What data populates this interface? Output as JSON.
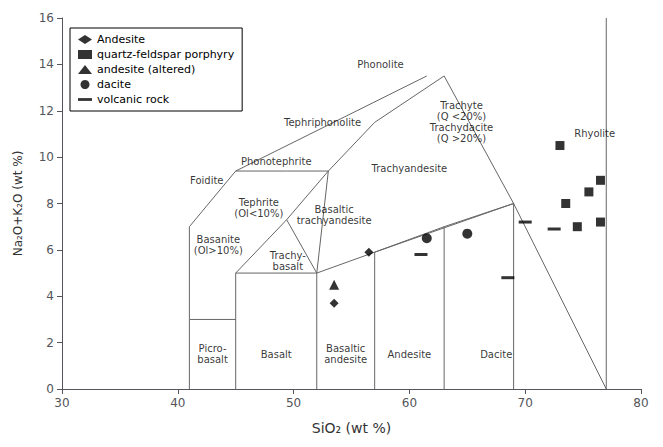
{
  "chart_data": {
    "type": "scatter",
    "xlabel": "SiO₂ (wt %)",
    "ylabel": "Na₂O+K₂O (wt %)",
    "xlim": [
      30,
      80
    ],
    "ylim": [
      0,
      16
    ],
    "xticks": [
      30,
      40,
      50,
      60,
      70,
      80
    ],
    "yticks": [
      0,
      2,
      4,
      6,
      8,
      10,
      12,
      14,
      16
    ],
    "grid": false,
    "legend": "upper left",
    "boundary_lines": {
      "color": "#666666",
      "segments": [
        {
          "x": [
            41,
            41
          ],
          "y": [
            0,
            3
          ]
        },
        {
          "x": [
            41,
            45
          ],
          "y": [
            3,
            3
          ]
        },
        {
          "x": [
            41,
            41
          ],
          "y": [
            3,
            7
          ]
        },
        {
          "x": [
            45,
            45
          ],
          "y": [
            0,
            5
          ]
        },
        {
          "x": [
            45,
            52
          ],
          "y": [
            5,
            5
          ]
        },
        {
          "x": [
            52,
            52
          ],
          "y": [
            0,
            5
          ]
        },
        {
          "x": [
            52,
            57
          ],
          "y": [
            5,
            5.9
          ]
        },
        {
          "x": [
            57,
            57
          ],
          "y": [
            0,
            5.9
          ]
        },
        {
          "x": [
            57,
            63
          ],
          "y": [
            5.9,
            7
          ]
        },
        {
          "x": [
            63,
            63
          ],
          "y": [
            0,
            7
          ]
        },
        {
          "x": [
            63,
            69
          ],
          "y": [
            7,
            8
          ]
        },
        {
          "x": [
            69,
            69
          ],
          "y": [
            0,
            8
          ]
        },
        {
          "x": [
            69,
            77
          ],
          "y": [
            8,
            0
          ]
        },
        {
          "x": [
            77,
            77
          ],
          "y": [
            0,
            16
          ]
        },
        {
          "x": [
            41,
            45
          ],
          "y": [
            7,
            9.4
          ]
        },
        {
          "x": [
            45,
            49.4
          ],
          "y": [
            9.4,
            9.4
          ]
        },
        {
          "x": [
            45,
            49.4
          ],
          "y": [
            5,
            7.3
          ]
        },
        {
          "x": [
            49.4,
            52
          ],
          "y": [
            7.3,
            5
          ]
        },
        {
          "x": [
            49.4,
            53
          ],
          "y": [
            7.3,
            9.4
          ]
        },
        {
          "x": [
            49.4,
            53
          ],
          "y": [
            9.4,
            9.4
          ]
        },
        {
          "x": [
            53,
            57
          ],
          "y": [
            9.4,
            11.5
          ]
        },
        {
          "x": [
            57,
            63
          ],
          "y": [
            11.5,
            13.5
          ]
        },
        {
          "x": [
            63,
            69
          ],
          "y": [
            13.5,
            8
          ]
        },
        {
          "x": [
            45,
            61.5
          ],
          "y": [
            9.4,
            13.5
          ]
        },
        {
          "x": [
            52,
            53
          ],
          "y": [
            5,
            9.4
          ]
        },
        {
          "x": [
            57,
            69
          ],
          "y": [
            5.9,
            8
          ]
        }
      ]
    },
    "annotations": [
      {
        "text": "Foidite",
        "x": 42.5,
        "y": 9.0
      },
      {
        "text": "Picro-\nbasalt",
        "x": 43.0,
        "y": 1.5
      },
      {
        "text": "Basalt",
        "x": 48.5,
        "y": 1.5
      },
      {
        "text": "Basaltic\nandesite",
        "x": 54.5,
        "y": 1.5
      },
      {
        "text": "Andesite",
        "x": 60.0,
        "y": 1.5
      },
      {
        "text": "Dacite",
        "x": 67.5,
        "y": 1.5
      },
      {
        "text": "Rhyolite",
        "x": 76.0,
        "y": 11.0
      },
      {
        "text": "Phonolite",
        "x": 57.5,
        "y": 14.0
      },
      {
        "text": "Tephriphonolite",
        "x": 52.5,
        "y": 11.5
      },
      {
        "text": "Phonotephrite",
        "x": 48.5,
        "y": 9.8
      },
      {
        "text": "Tephrite\n(Ol<10%)",
        "x": 47.0,
        "y": 7.8
      },
      {
        "text": "Basanite\n(Ol>10%)",
        "x": 43.5,
        "y": 6.2
      },
      {
        "text": "Trachy-\nbasalt",
        "x": 49.5,
        "y": 5.5
      },
      {
        "text": "Basaltic\ntrachyandesite",
        "x": 53.5,
        "y": 7.5
      },
      {
        "text": "Trachyte\n(Q <20%)\nTrachydacite\n(Q >20%)",
        "x": 64.5,
        "y": 11.5
      },
      {
        "text": "Trachyandesite",
        "x": 60.0,
        "y": 9.5
      }
    ],
    "series": [
      {
        "name": "Andesite",
        "marker": "diamond",
        "color": "#000000",
        "x": [
          53.5,
          56.5
        ],
        "values": [
          3.7,
          5.9
        ]
      },
      {
        "name": "quartz-feldspar porphyry",
        "marker": "square",
        "color": "#000000",
        "x": [
          73.0,
          76.5,
          73.5,
          76.5,
          74.5,
          75.5
        ],
        "values": [
          10.5,
          9.0,
          8.0,
          7.2,
          7.0,
          8.5
        ]
      },
      {
        "name": "andesite (altered)",
        "marker": "triangle",
        "color": "#000000",
        "x": [
          53.5
        ],
        "values": [
          4.5
        ]
      },
      {
        "name": "dacite",
        "marker": "circle",
        "color": "#000000",
        "x": [
          61.5,
          65.0
        ],
        "values": [
          6.5,
          6.7
        ]
      },
      {
        "name": "volcanic rock",
        "marker": "dash",
        "color": "#000000",
        "x": [
          61.0,
          68.5,
          70.0,
          72.5
        ],
        "values": [
          5.8,
          4.8,
          7.2,
          6.9
        ]
      }
    ]
  }
}
